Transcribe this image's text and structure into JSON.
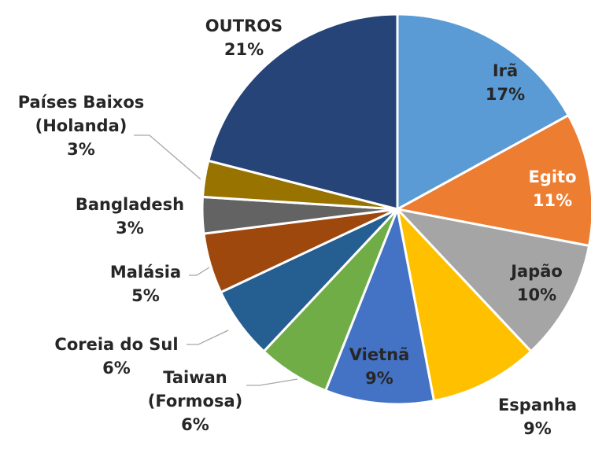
{
  "chart_data": {
    "type": "pie",
    "categories": [
      "Irã",
      "Egito",
      "Japão",
      "Espanha",
      "Vietnã",
      "Taiwan (Formosa)",
      "Coreia do Sul",
      "Malásia",
      "Bangladesh",
      "Países Baixos (Holanda)",
      "OUTROS"
    ],
    "values": [
      17,
      11,
      10,
      9,
      9,
      6,
      6,
      5,
      3,
      3,
      21
    ],
    "value_labels": [
      "17%",
      "11%",
      "10%",
      "9%",
      "9%",
      "6%",
      "6%",
      "5%",
      "3%",
      "3%",
      "21%"
    ],
    "colors": [
      "#5b9bd5",
      "#ed7d31",
      "#a5a5a5",
      "#ffc000",
      "#4472c4",
      "#70ad47",
      "#255e91",
      "#9e480e",
      "#636363",
      "#997300",
      "#264478"
    ]
  }
}
